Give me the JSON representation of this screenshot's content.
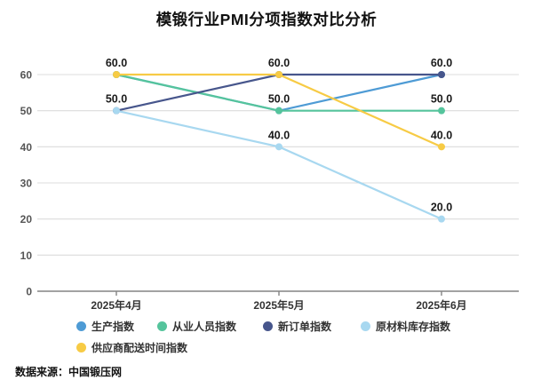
{
  "title": "模锻行业PMI分项指数对比分析",
  "source_note": "数据来源：中国锻压网",
  "chart_data": {
    "type": "line",
    "title": "模锻行业PMI分项指数对比分析",
    "categories": [
      "2025年4月",
      "2025年5月",
      "2025年6月"
    ],
    "series": [
      {
        "name": "生产指数",
        "color": "#4E9BD5",
        "values": [
          60,
          50,
          60
        ]
      },
      {
        "name": "从业人员指数",
        "color": "#55C49C",
        "values": [
          60,
          50,
          50
        ]
      },
      {
        "name": "新订单指数",
        "color": "#47568C",
        "values": [
          50,
          60,
          60
        ]
      },
      {
        "name": "原材料库存指数",
        "color": "#A8D8F0",
        "values": [
          50,
          40,
          20
        ]
      },
      {
        "name": "供应商配送时间指数",
        "color": "#F7CB45",
        "values": [
          60,
          60,
          40
        ]
      }
    ],
    "yticks": [
      0,
      10,
      20,
      30,
      40,
      50,
      60
    ],
    "ylim": [
      0,
      60
    ],
    "xlabel": "",
    "ylabel": "",
    "grid": true,
    "grid_color": "#dcdcdc",
    "axis_color": "#848484",
    "data_label_format": "one-decimal",
    "legend_position": "bottom",
    "legend_columns": 4
  }
}
